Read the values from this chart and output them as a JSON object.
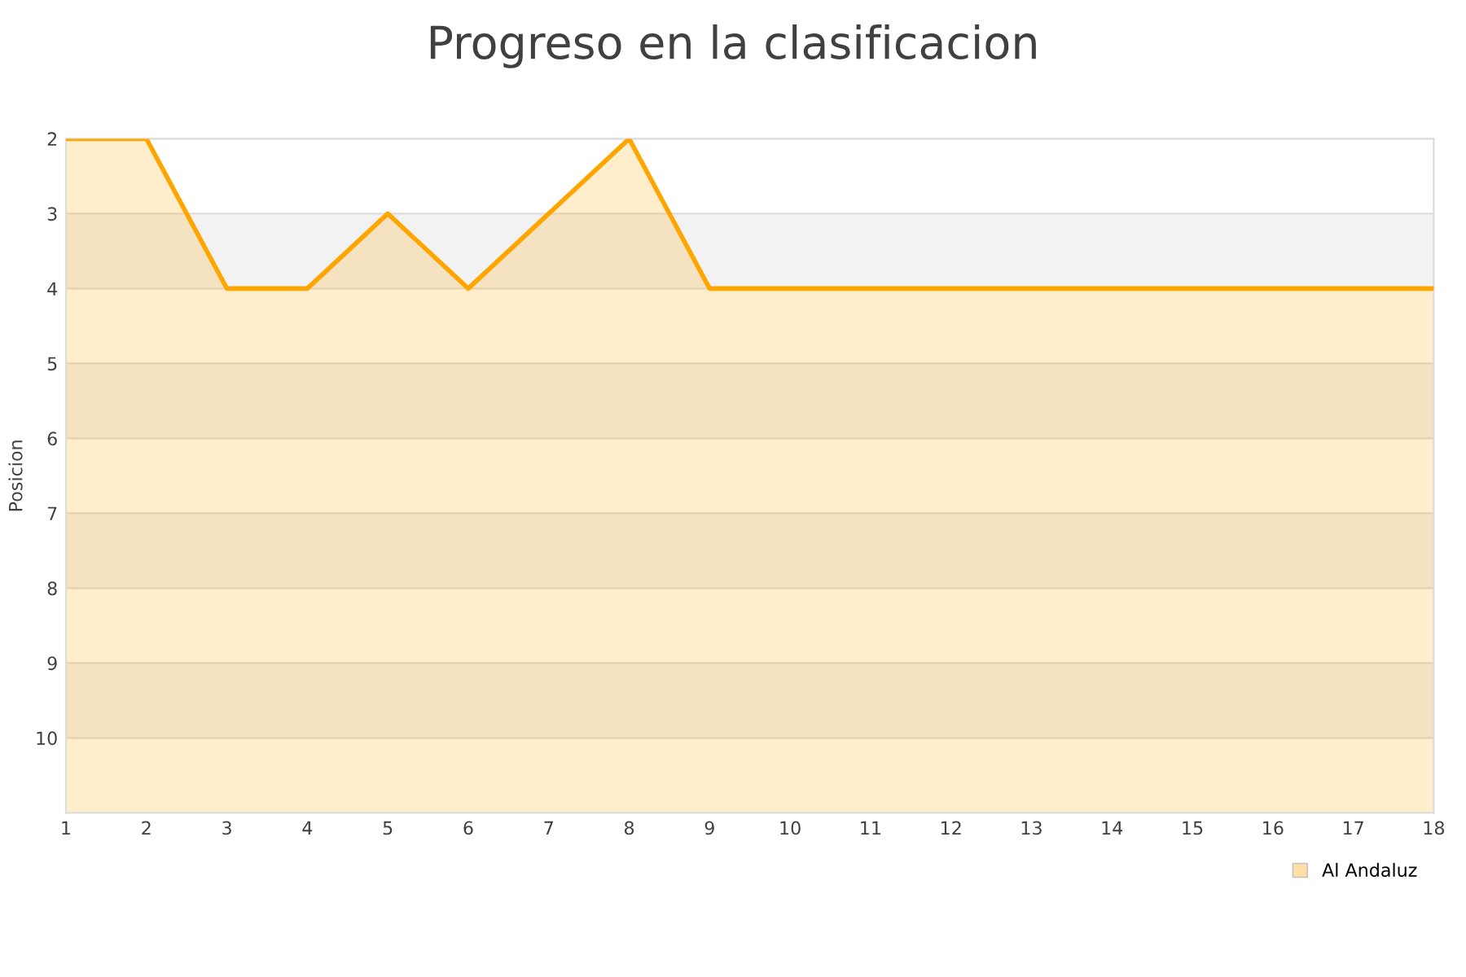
{
  "chart_data": {
    "type": "line",
    "title": "Progreso en la clasificacion",
    "ylabel": "Posicion",
    "x": [
      1,
      2,
      3,
      4,
      5,
      6,
      7,
      8,
      9,
      10,
      11,
      12,
      13,
      14,
      15,
      16,
      17,
      18
    ],
    "series": [
      {
        "name": "Al Andaluz",
        "color": "#ffa500",
        "values": [
          2,
          2,
          4,
          4,
          3,
          4,
          3,
          2,
          4,
          4,
          4,
          4,
          4,
          4,
          4,
          4,
          4,
          4
        ],
        "lower": [
          2,
          2,
          4,
          4,
          3,
          4,
          3,
          2,
          4,
          4,
          4,
          4,
          4,
          4,
          4,
          4,
          4,
          4
        ],
        "upper": [
          11,
          11,
          11,
          11,
          11,
          11,
          11,
          11,
          11,
          11,
          11,
          11,
          11,
          11,
          11,
          11,
          11,
          11
        ]
      }
    ],
    "xlim": [
      1,
      18
    ],
    "xticks": [
      1,
      2,
      3,
      4,
      5,
      6,
      7,
      8,
      9,
      10,
      11,
      12,
      13,
      14,
      15,
      16,
      17,
      18
    ],
    "ylim": [
      11,
      2
    ],
    "yticks": [
      2,
      3,
      4,
      5,
      6,
      7,
      8,
      9,
      10
    ],
    "bands": [
      {
        "axis": "y",
        "from": 3,
        "to": 4,
        "color": "#f2f2f2"
      },
      {
        "axis": "y",
        "from": 5,
        "to": 6,
        "color": "#f2f2f2"
      },
      {
        "axis": "y",
        "from": 7,
        "to": 8,
        "color": "#f2f2f2"
      },
      {
        "axis": "y",
        "from": 9,
        "to": 10,
        "color": "#f2f2f2"
      }
    ],
    "grid": "y",
    "legend": "bottom right"
  }
}
